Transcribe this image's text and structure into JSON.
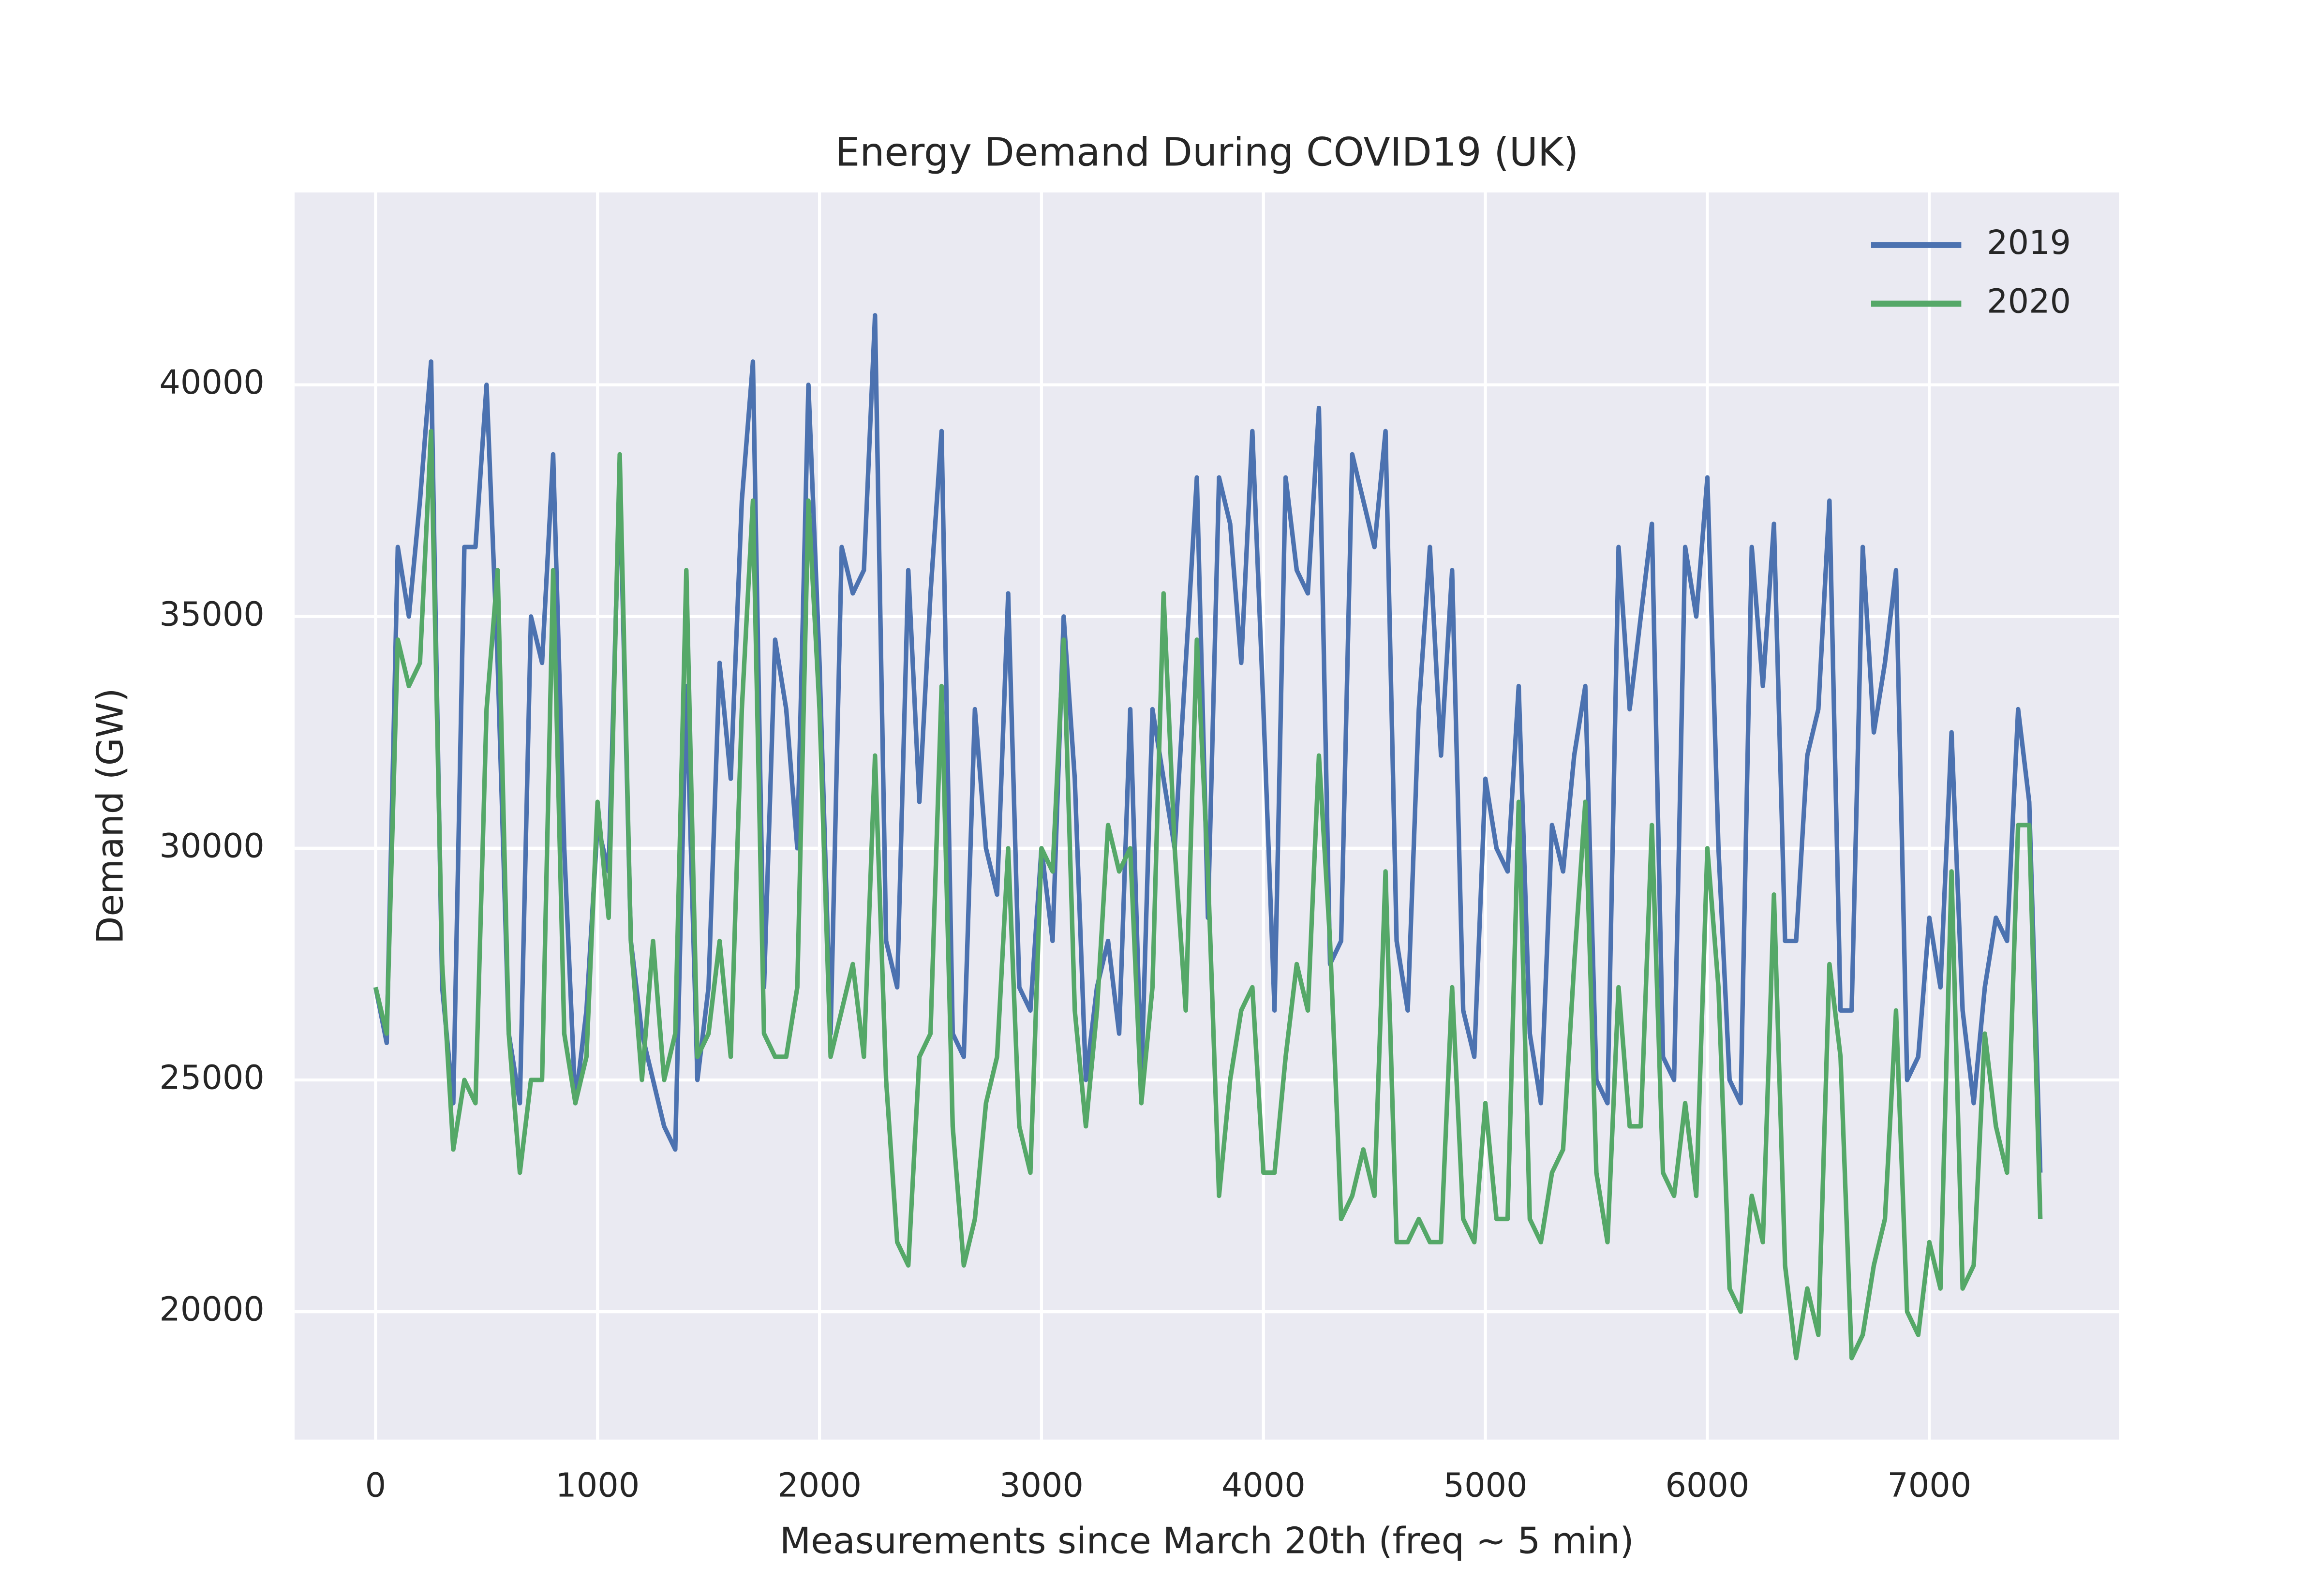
{
  "chart_data": {
    "type": "line",
    "title": "Energy Demand During COVID19 (UK)",
    "x_label": "Measurements since March 20th (freq ~ 5 min)",
    "y_label": "Demand (GW)",
    "x": [
      0,
      50,
      100,
      150,
      200,
      250,
      300,
      350,
      400,
      450,
      500,
      550,
      600,
      650,
      700,
      750,
      800,
      850,
      900,
      950,
      1000,
      1050,
      1100,
      1150,
      1200,
      1250,
      1300,
      1350,
      1400,
      1450,
      1500,
      1550,
      1600,
      1650,
      1700,
      1750,
      1800,
      1850,
      1900,
      1950,
      2000,
      2050,
      2100,
      2150,
      2200,
      2250,
      2300,
      2350,
      2400,
      2450,
      2500,
      2550,
      2600,
      2650,
      2700,
      2750,
      2800,
      2850,
      2900,
      2950,
      3000,
      3050,
      3100,
      3150,
      3200,
      3250,
      3300,
      3350,
      3400,
      3450,
      3500,
      3550,
      3600,
      3650,
      3700,
      3750,
      3800,
      3850,
      3900,
      3950,
      4000,
      4050,
      4100,
      4150,
      4200,
      4250,
      4300,
      4350,
      4400,
      4450,
      4500,
      4550,
      4600,
      4650,
      4700,
      4750,
      4800,
      4850,
      4900,
      4950,
      5000,
      5050,
      5100,
      5150,
      5200,
      5250,
      5300,
      5350,
      5400,
      5450,
      5500,
      5550,
      5600,
      5650,
      5700,
      5750,
      5800,
      5850,
      5900,
      5950,
      6000,
      6050,
      6100,
      6150,
      6200,
      6250,
      6300,
      6350,
      6400,
      6450,
      6500,
      6550,
      6600,
      6650,
      6700,
      6750,
      6800,
      6850,
      6900,
      6950,
      7000,
      7050,
      7100,
      7150,
      7200,
      7250,
      7300,
      7350,
      7400,
      7450,
      7500
    ],
    "series": [
      {
        "name": "2019",
        "color": "#4c72b0",
        "values": [
          27000,
          25800,
          36500,
          35000,
          37500,
          40500,
          27000,
          24500,
          36500,
          36500,
          40000,
          34000,
          26000,
          24500,
          35000,
          34000,
          38500,
          30000,
          24500,
          26500,
          30500,
          29500,
          38000,
          28000,
          26000,
          25000,
          24000,
          23500,
          33500,
          25000,
          27000,
          34000,
          31500,
          37500,
          40500,
          27000,
          34500,
          33000,
          30000,
          40000,
          34000,
          26000,
          36500,
          35500,
          36000,
          41500,
          28000,
          27000,
          36000,
          31000,
          35500,
          39000,
          26000,
          25500,
          33000,
          30000,
          29000,
          35500,
          27000,
          26500,
          30000,
          28000,
          35000,
          31500,
          25000,
          27000,
          28000,
          26000,
          33000,
          25000,
          33000,
          31500,
          30000,
          34000,
          38000,
          28500,
          38000,
          37000,
          34000,
          39000,
          33000,
          26500,
          38000,
          36000,
          35500,
          39500,
          27500,
          28000,
          38500,
          37500,
          36500,
          39000,
          28000,
          26500,
          33000,
          36500,
          32000,
          36000,
          26500,
          25500,
          31500,
          30000,
          29500,
          33500,
          26000,
          24500,
          30500,
          29500,
          32000,
          33500,
          25000,
          24500,
          36500,
          33000,
          35000,
          37000,
          25500,
          25000,
          36500,
          35000,
          38000,
          30000,
          25000,
          24500,
          36500,
          33500,
          37000,
          28000,
          28000,
          32000,
          33000,
          37500,
          26500,
          26500,
          36500,
          32500,
          34000,
          36000,
          25000,
          25500,
          28500,
          27000,
          32500,
          26500,
          24500,
          27000,
          28500,
          28000,
          33000,
          31000,
          23000
        ]
      },
      {
        "name": "2020",
        "color": "#55a868",
        "values": [
          27000,
          26000,
          34500,
          33500,
          34000,
          39000,
          27500,
          23500,
          25000,
          24500,
          33000,
          36000,
          26000,
          23000,
          25000,
          25000,
          36000,
          26000,
          24500,
          25500,
          31000,
          28500,
          38500,
          28000,
          25000,
          28000,
          25000,
          26000,
          36000,
          25500,
          26000,
          28000,
          25500,
          33000,
          37500,
          26000,
          25500,
          25500,
          27000,
          37500,
          33000,
          25500,
          26500,
          27500,
          25500,
          32000,
          25000,
          21500,
          21000,
          25500,
          26000,
          33500,
          24000,
          21000,
          22000,
          24500,
          25500,
          30000,
          24000,
          23000,
          30000,
          29500,
          34500,
          26500,
          24000,
          26500,
          30500,
          29500,
          30000,
          24500,
          27000,
          35500,
          30000,
          26500,
          34500,
          29500,
          22500,
          25000,
          26500,
          27000,
          23000,
          23000,
          25500,
          27500,
          26500,
          32000,
          28000,
          22000,
          22500,
          23500,
          22500,
          29500,
          21500,
          21500,
          22000,
          21500,
          21500,
          27000,
          22000,
          21500,
          24500,
          22000,
          22000,
          31000,
          22000,
          21500,
          23000,
          23500,
          27500,
          31000,
          23000,
          21500,
          27000,
          24000,
          24000,
          30500,
          23000,
          22500,
          24500,
          22500,
          30000,
          27000,
          20500,
          20000,
          22500,
          21500,
          29000,
          21000,
          19000,
          20500,
          19500,
          27500,
          25500,
          19000,
          19500,
          21000,
          22000,
          26500,
          20000,
          19500,
          21500,
          20500,
          29500,
          20500,
          21000,
          26000,
          24000,
          23000,
          30500,
          30500,
          22000
        ]
      }
    ],
    "xlim": [
      -365,
      7855
    ],
    "ylim": [
      17240,
      44150
    ],
    "xticks": [
      0,
      1000,
      2000,
      3000,
      4000,
      5000,
      6000,
      7000
    ],
    "yticks": [
      20000,
      25000,
      30000,
      35000,
      40000
    ],
    "grid": true,
    "legend": "upper right",
    "background": "#eaeaf2"
  }
}
